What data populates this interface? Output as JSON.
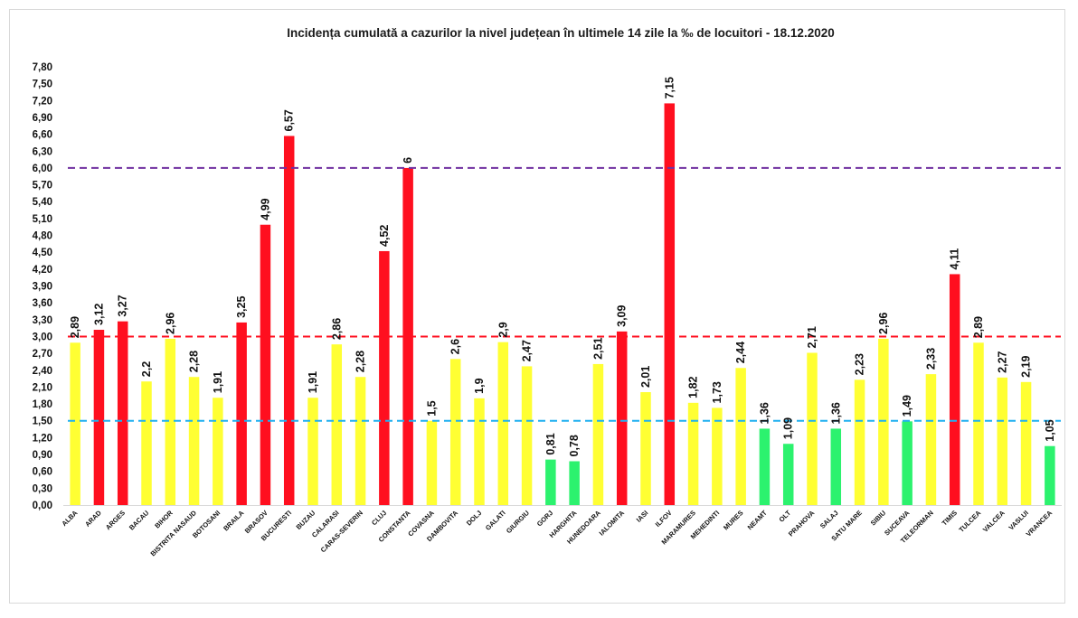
{
  "chart_data": {
    "type": "bar",
    "title": "Incidența cumulată a cazurilor la nivel județean în ultimele 14 zile   la ‰ de locuitori  - 18.12.2020",
    "xlabel": "",
    "ylabel": "",
    "ylim": [
      0,
      7.8
    ],
    "yticks": [
      "0,00",
      "0,30",
      "0,60",
      "0,90",
      "1,20",
      "1,50",
      "1,80",
      "2,10",
      "2,40",
      "2,70",
      "3,00",
      "3,30",
      "3,60",
      "3,90",
      "4,20",
      "4,50",
      "4,80",
      "5,10",
      "5,40",
      "5,70",
      "6,00",
      "6,30",
      "6,60",
      "6,90",
      "7,20",
      "7,50",
      "7,80"
    ],
    "ytick_values": [
      0,
      0.3,
      0.6,
      0.9,
      1.2,
      1.5,
      1.8,
      2.1,
      2.4,
      2.7,
      3.0,
      3.3,
      3.6,
      3.9,
      4.2,
      4.5,
      4.8,
      5.1,
      5.4,
      5.7,
      6.0,
      6.3,
      6.6,
      6.9,
      7.2,
      7.5,
      7.8
    ],
    "grid": false,
    "legend": "none",
    "categories": [
      "ALBA",
      "ARAD",
      "ARGES",
      "BACAU",
      "BIHOR",
      "BISTRITA NASAUD",
      "BOTOSANI",
      "BRAILA",
      "BRASOV",
      "BUCURESTI",
      "BUZAU",
      "CALARASI",
      "CARAS-SEVERIN",
      "CLUJ",
      "CONSTANTA",
      "COVASNA",
      "DAMBOVITA",
      "DOLJ",
      "GALATI",
      "GIURGIU",
      "GORJ",
      "HARGHITA",
      "HUNEDOARA",
      "IALOMITA",
      "IASI",
      "ILFOV",
      "MARAMURES",
      "MEHEDINTI",
      "MURES",
      "NEAMT",
      "OLT",
      "PRAHOVA",
      "SALAJ",
      "SATU MARE",
      "SIBIU",
      "SUCEAVA",
      "TELEORMAN",
      "TIMIS",
      "TULCEA",
      "VALCEA",
      "VASLUI",
      "VRANCEA"
    ],
    "values": [
      2.89,
      3.12,
      3.27,
      2.2,
      2.96,
      2.28,
      1.91,
      3.25,
      4.99,
      6.57,
      1.91,
      2.86,
      2.28,
      4.52,
      6,
      1.5,
      2.6,
      1.9,
      2.9,
      2.47,
      0.81,
      0.78,
      2.51,
      3.09,
      2.01,
      7.15,
      1.82,
      1.73,
      2.44,
      1.36,
      1.09,
      2.71,
      1.36,
      2.23,
      2.96,
      1.49,
      2.33,
      4.11,
      2.89,
      2.27,
      2.19,
      1.05
    ],
    "data_labels": [
      "2,89",
      "3,12",
      "3,27",
      "2,2",
      "2,96",
      "2,28",
      "1,91",
      "3,25",
      "4,99",
      "6,57",
      "1,91",
      "2,86",
      "2,28",
      "4,52",
      "6",
      "1,5",
      "2,6",
      "1,9",
      "2,9",
      "2,47",
      "0,81",
      "0,78",
      "2,51",
      "3,09",
      "2,01",
      "7,15",
      "1,82",
      "1,73",
      "2,44",
      "1,36",
      "1,09",
      "2,71",
      "1,36",
      "2,23",
      "2,96",
      "1,49",
      "2,33",
      "4,11",
      "2,89",
      "2,27",
      "2,19",
      "1,05"
    ],
    "bar_colors": {
      "green": "#2cf26e",
      "yellow": "#ffff33",
      "red": "#ff0f1f"
    },
    "color_rule": "green if value < 1.5, yellow if 1.5 <= value <= 3.0, red if value > 3.0",
    "reference_lines": [
      {
        "name": "threshold-6",
        "value": 6.0,
        "color": "#7030a0",
        "style": "dashed"
      },
      {
        "name": "threshold-3",
        "value": 3.0,
        "color": "#ff0f1f",
        "style": "dashed"
      },
      {
        "name": "threshold-1-5",
        "value": 1.5,
        "color": "#20b0f0",
        "style": "dashed"
      }
    ],
    "axis_color": "#d9d9d9"
  }
}
